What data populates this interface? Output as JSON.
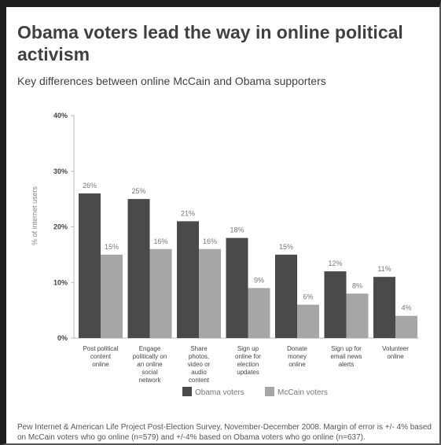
{
  "title": "Obama voters lead the way in online political activism",
  "subtitle": "Key differences between online McCain and Obama supporters",
  "chart_data": {
    "type": "bar",
    "title": "Obama voters lead the way in online political activism",
    "subtitle": "Key differences between online McCain and Obama supporters",
    "ylabel": "% of internet users",
    "xlabel": "",
    "ylim": [
      0,
      40
    ],
    "yticks": [
      "0%",
      "10%",
      "20%",
      "30%",
      "40%"
    ],
    "categories": [
      [
        "Post political",
        "content",
        "online"
      ],
      [
        "Engage",
        "politically on",
        "an online",
        "social",
        "network"
      ],
      [
        "Share",
        "photos,",
        "video or",
        "audio",
        "content"
      ],
      [
        "Sign up",
        "online for",
        "election",
        "updates"
      ],
      [
        "Donate",
        "money",
        "online"
      ],
      [
        "Sign up for",
        "email news",
        "alerts"
      ],
      [
        "Volunteer",
        "online"
      ]
    ],
    "series": [
      {
        "name": "Obama voters",
        "values": [
          26,
          25,
          21,
          18,
          15,
          12,
          11
        ],
        "labels": [
          "26%",
          "25%",
          "21%",
          "18%",
          "15%",
          "12%",
          "11%"
        ],
        "color": "#4a4a4a"
      },
      {
        "name": "McCain voters",
        "values": [
          15,
          16,
          16,
          9,
          6,
          8,
          4
        ],
        "labels": [
          "15%",
          "16%",
          "16%",
          "9%",
          "6%",
          "8%",
          "4%"
        ],
        "color": "#a6a6a6"
      }
    ],
    "grid": false,
    "legend": "bottom"
  },
  "footnote": "Pew Internet & American Life Project Post-Election Survey, November-December 2008. Margin of error is +/- 4% based on McCain voters who go online (n=579) and +/-4% based on Obama voters who go online (n=637)."
}
